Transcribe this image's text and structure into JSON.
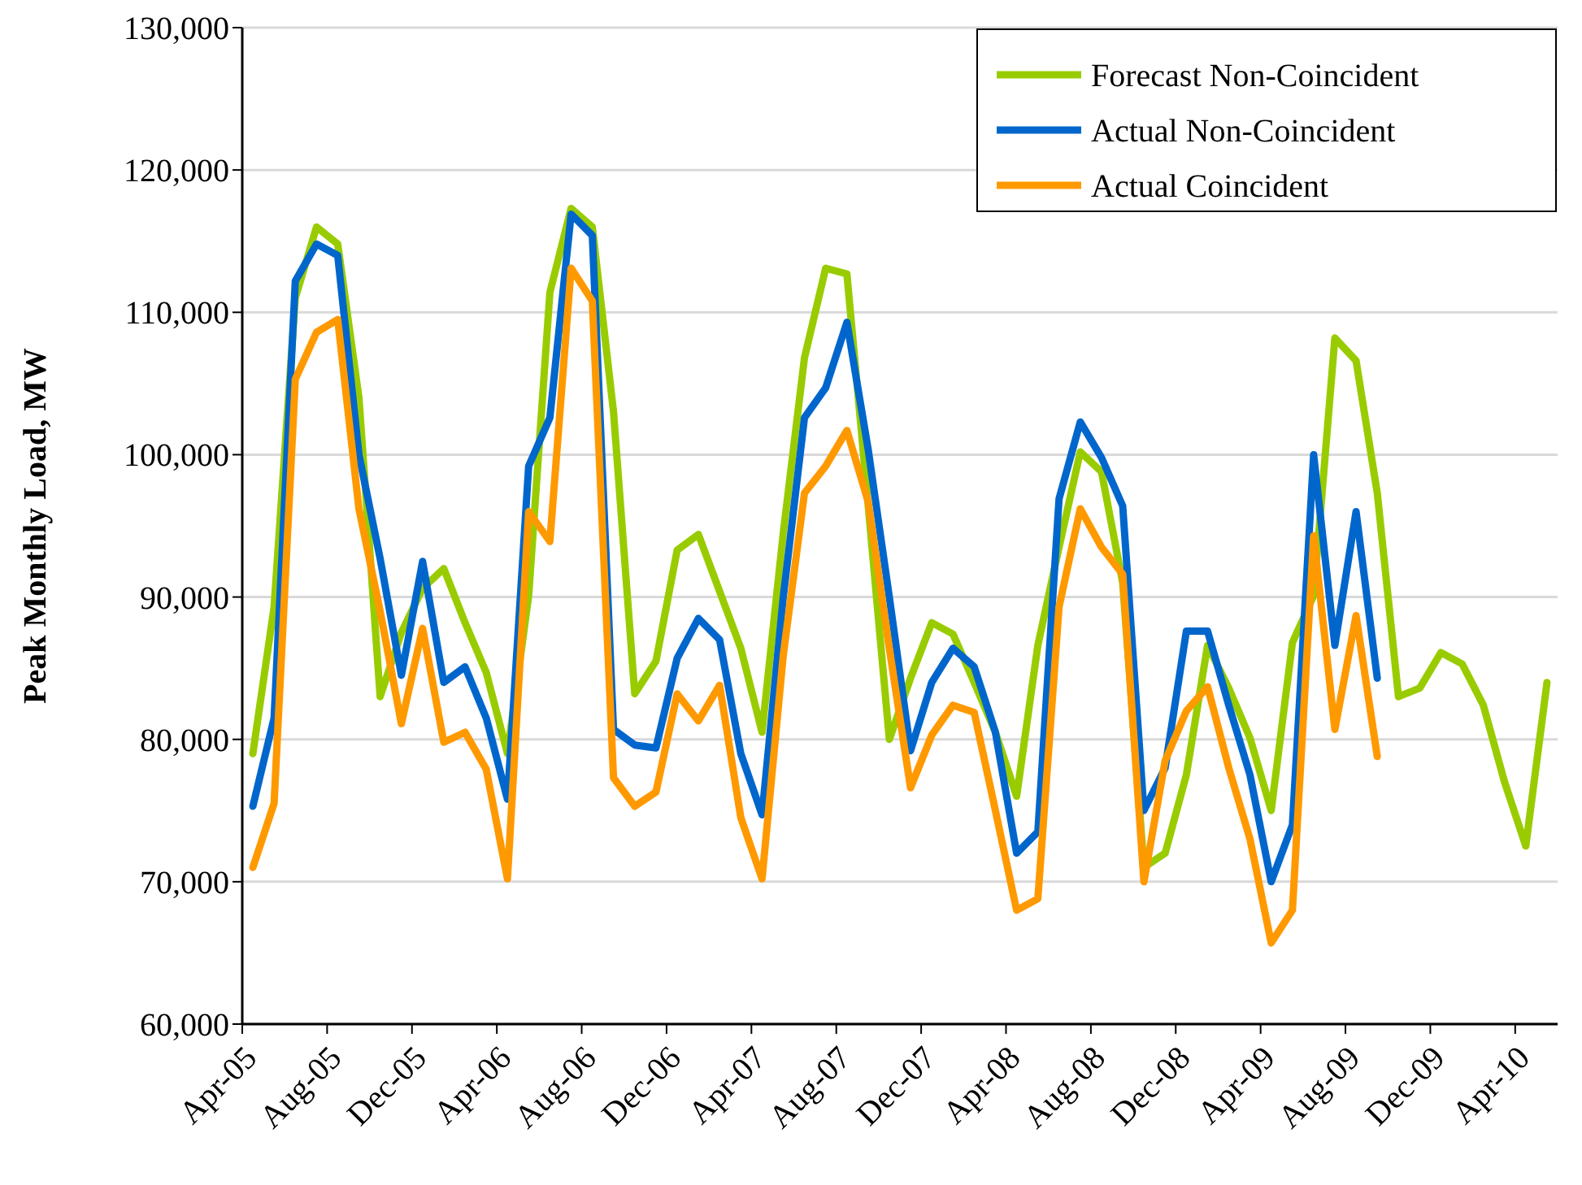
{
  "chart_data": {
    "type": "line",
    "ylabel": "Peak Monthly Load, MW",
    "categories": [
      "Apr-05",
      null,
      null,
      null,
      "Aug-05",
      null,
      null,
      null,
      "Dec-05",
      null,
      null,
      null,
      "Apr-06",
      null,
      null,
      null,
      "Aug-06",
      null,
      null,
      null,
      "Dec-06",
      null,
      null,
      null,
      "Apr-07",
      null,
      null,
      null,
      "Aug-07",
      null,
      null,
      null,
      "Dec-07",
      null,
      null,
      null,
      "Apr-08",
      null,
      null,
      null,
      "Aug-08",
      null,
      null,
      null,
      "Dec-08",
      null,
      null,
      null,
      "Apr-09",
      null,
      null,
      null,
      "Aug-09",
      null,
      null,
      null,
      "Dec-09",
      null,
      null,
      null,
      "Apr-10",
      null
    ],
    "series": [
      {
        "name": "Forecast Non-Coincident",
        "color": "#99cc00",
        "values": [
          79000,
          89300,
          111000,
          116000,
          114800,
          104000,
          83000,
          87500,
          90600,
          92000,
          88200,
          84700,
          79000,
          90100,
          111400,
          117300,
          116000,
          103000,
          83200,
          85500,
          93300,
          94400,
          90400,
          86400,
          80500,
          94500,
          106800,
          113100,
          112700,
          96500,
          80000,
          84300,
          88200,
          87400,
          84000,
          80500,
          76000,
          86600,
          93500,
          100200,
          98800,
          91000,
          71000,
          72000,
          77500,
          86600,
          83600,
          80100,
          75000,
          86800,
          90100,
          108200,
          106600,
          97300,
          83000,
          83600,
          86100,
          85300,
          82400,
          77000,
          72500,
          84000
        ]
      },
      {
        "name": "Actual Non-Coincident",
        "color": "#0066cc",
        "values": [
          75300,
          81500,
          112200,
          114800,
          114000,
          100000,
          92700,
          84500,
          92500,
          84000,
          85100,
          81500,
          75800,
          99200,
          102600,
          116900,
          115400,
          80700,
          79600,
          79400,
          85700,
          88500,
          87000,
          79000,
          74700,
          90000,
          102600,
          104700,
          109300,
          100400,
          90000,
          79200,
          84000,
          86400,
          85100,
          80500,
          72000,
          73500,
          96900,
          102300,
          99800,
          96400,
          75000,
          78000,
          87600,
          87600,
          82400,
          77500,
          70000,
          74000,
          100000,
          86600,
          96000,
          84300,
          null,
          null,
          null,
          null,
          null,
          null,
          null,
          null
        ]
      },
      {
        "name": "Actual Coincident",
        "color": "#ff9900",
        "values": [
          71000,
          75500,
          105300,
          108600,
          109500,
          96200,
          89000,
          81100,
          87800,
          79800,
          80500,
          77900,
          70200,
          96000,
          93900,
          113100,
          110800,
          77300,
          75300,
          76300,
          83200,
          81300,
          83800,
          74500,
          70200,
          85900,
          97300,
          99200,
          101700,
          96700,
          86400,
          76600,
          80300,
          82400,
          81900,
          75000,
          68000,
          68800,
          89300,
          96200,
          93500,
          91600,
          70000,
          78500,
          82000,
          83700,
          78000,
          73000,
          65700,
          68000,
          94300,
          80700,
          88700,
          78800,
          null,
          null,
          null,
          null,
          null,
          null,
          null,
          null
        ]
      }
    ],
    "ylim": [
      60000,
      130000
    ],
    "yticks": [
      {
        "value": 60000,
        "label": "60,000"
      },
      {
        "value": 70000,
        "label": "70,000"
      },
      {
        "value": 80000,
        "label": "80,000"
      },
      {
        "value": 90000,
        "label": "90,000"
      },
      {
        "value": 100000,
        "label": "100,000"
      },
      {
        "value": 110000,
        "label": "110,000"
      },
      {
        "value": 120000,
        "label": "120,000"
      },
      {
        "value": 130000,
        "label": "130,000"
      }
    ],
    "grid": "y",
    "legend": "top right",
    "line_style": "solid",
    "marker": "none"
  }
}
